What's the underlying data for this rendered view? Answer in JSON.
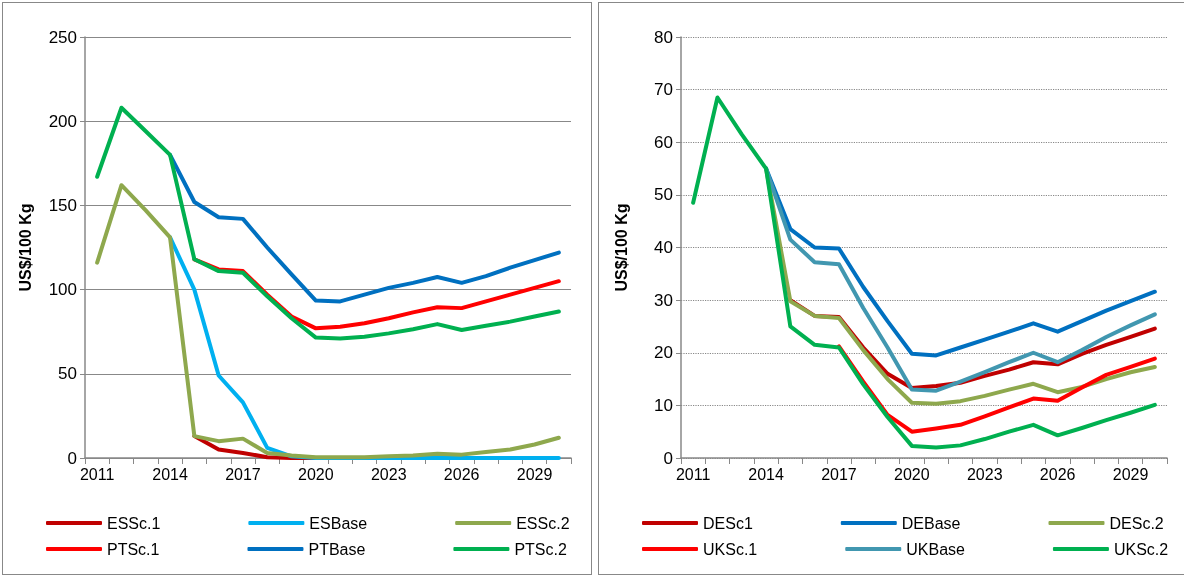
{
  "chart_data": [
    {
      "type": "line",
      "ylabel": "US$/100 Kg",
      "categories": [
        "2011",
        null,
        null,
        "2014",
        null,
        null,
        "2017",
        null,
        null,
        "2020",
        null,
        null,
        "2023",
        null,
        null,
        "2026",
        null,
        null,
        "2029",
        null
      ],
      "ylim": [
        0,
        250
      ],
      "yticks": [
        0,
        50,
        100,
        150,
        200,
        250
      ],
      "grid": "y",
      "legend": "bottom",
      "marker": "none",
      "line_style": "solid",
      "series": [
        {
          "name": "ESSc.1",
          "color": "#c00000",
          "values": [
            null,
            null,
            null,
            null,
            13,
            5,
            3,
            0.5,
            0,
            0,
            null,
            null,
            null,
            null,
            null,
            null,
            null,
            null,
            null,
            null
          ]
        },
        {
          "name": "ESBase",
          "color": "#00b0f0",
          "values": [
            null,
            null,
            null,
            131,
            100,
            49,
            33,
            6,
            1,
            0,
            0,
            0,
            0,
            0,
            0,
            0,
            0,
            0,
            0,
            0
          ]
        },
        {
          "name": "ESSc.2",
          "color": "#8ea84d",
          "values": [
            116,
            162,
            147,
            131,
            13,
            10,
            11.5,
            3,
            1.5,
            0.5,
            0.5,
            0.5,
            1,
            1.5,
            2.5,
            2,
            3.5,
            5,
            8,
            12
          ]
        },
        {
          "name": "PTSc.1",
          "color": "#ff0000",
          "values": [
            null,
            null,
            null,
            null,
            118,
            112,
            111,
            97,
            84,
            77,
            78,
            80,
            83,
            86.5,
            89.5,
            89,
            93,
            97,
            101,
            105
          ]
        },
        {
          "name": "PTBase",
          "color": "#0070c0",
          "values": [
            null,
            null,
            null,
            180,
            152,
            143,
            142,
            125,
            109,
            93.5,
            93,
            97,
            101,
            104,
            107.5,
            104,
            108,
            113,
            117.5,
            122
          ]
        },
        {
          "name": "PTSc.2",
          "color": "#00b050",
          "values": [
            167,
            208,
            194,
            180,
            118,
            111,
            110,
            96,
            83,
            71.5,
            71,
            72,
            74,
            76.5,
            79.5,
            76,
            78.5,
            81,
            84,
            87
          ]
        }
      ]
    },
    {
      "type": "line",
      "ylabel": "US$/100 Kg",
      "categories": [
        "2011",
        null,
        null,
        "2014",
        null,
        null,
        "2017",
        null,
        null,
        "2020",
        null,
        null,
        "2023",
        null,
        null,
        "2026",
        null,
        null,
        "2029",
        null
      ],
      "ylim": [
        0,
        80
      ],
      "yticks": [
        0,
        10,
        20,
        30,
        40,
        50,
        60,
        70,
        80
      ],
      "grid": "y",
      "legend": "bottom",
      "marker": "none",
      "line_style": "solid",
      "series": [
        {
          "name": "DESc1",
          "color": "#c00000",
          "values": [
            null,
            null,
            null,
            null,
            30,
            27,
            26.8,
            21,
            16,
            13.3,
            13.7,
            14.3,
            15.6,
            16.8,
            18.2,
            17.8,
            19.8,
            21.5,
            23,
            24.6
          ]
        },
        {
          "name": "DEBase",
          "color": "#0070c0",
          "values": [
            null,
            null,
            null,
            55,
            43.5,
            40,
            39.8,
            32.5,
            26,
            19.8,
            19.5,
            21,
            22.5,
            24,
            25.6,
            24,
            26,
            28,
            29.8,
            31.6
          ]
        },
        {
          "name": "DESc.2",
          "color": "#8ea84d",
          "values": [
            null,
            null,
            null,
            55,
            29.8,
            27,
            26.6,
            20.5,
            15,
            10.5,
            10.3,
            10.8,
            11.8,
            13,
            14.1,
            12.5,
            13.5,
            15,
            16.3,
            17.3
          ]
        },
        {
          "name": "UKSc.1",
          "color": "#ff0000",
          "values": [
            null,
            null,
            null,
            null,
            null,
            null,
            21.2,
            14.5,
            8.2,
            5,
            5.6,
            6.3,
            7.9,
            9.6,
            11.3,
            10.9,
            13.4,
            15.8,
            17.3,
            18.9
          ]
        },
        {
          "name": "UKBase",
          "color": "#4197b0",
          "values": [
            null,
            null,
            null,
            55,
            41.5,
            37.2,
            36.8,
            28.5,
            21,
            13,
            12.8,
            14.5,
            16.3,
            18.2,
            20,
            18.2,
            20.5,
            23,
            25.2,
            27.3
          ]
        },
        {
          "name": "UKSc.2",
          "color": "#00b050",
          "values": [
            48.5,
            68.5,
            61.5,
            55,
            25,
            21.5,
            21,
            14,
            7.8,
            2.3,
            2,
            2.4,
            3.6,
            5,
            6.3,
            4.3,
            5.7,
            7.2,
            8.6,
            10.1
          ]
        }
      ]
    }
  ]
}
